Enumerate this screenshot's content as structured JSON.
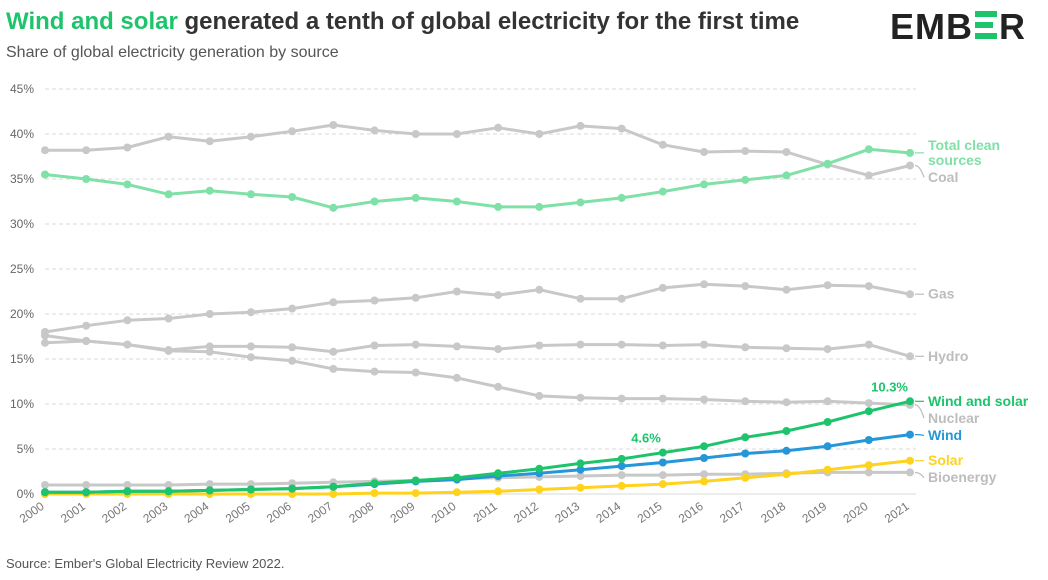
{
  "header": {
    "title_highlight": "Wind and solar",
    "title_rest": " generated a tenth of global electricity for the first time",
    "subtitle": "Share of global electricity generation by source",
    "logo_pre": "EMB",
    "logo_post": "R"
  },
  "footer": {
    "source": "Source: Ember's Global Electricity Review 2022."
  },
  "chart_data": {
    "type": "line",
    "title": "Wind and solar generated a tenth of global electricity for the first time",
    "subtitle": "Share of global electricity generation by source",
    "xlabel": "",
    "ylabel": "",
    "ylim": [
      0,
      45
    ],
    "yticks": [
      0,
      5,
      10,
      15,
      20,
      25,
      30,
      35,
      40,
      45
    ],
    "ytick_labels": [
      "0%",
      "5%",
      "10%",
      "15%",
      "20%",
      "25%",
      "30%",
      "35%",
      "40%",
      "45%"
    ],
    "grid": true,
    "categories": [
      "2000",
      "2001",
      "2002",
      "2003",
      "2004",
      "2005",
      "2006",
      "2007",
      "2008",
      "2009",
      "2010",
      "2011",
      "2012",
      "2013",
      "2014",
      "2015",
      "2016",
      "2017",
      "2018",
      "2019",
      "2020",
      "2021"
    ],
    "series": [
      {
        "name": "Coal",
        "color": "#c8c8c8",
        "labels": [
          "Coal"
        ],
        "values": [
          38.2,
          38.2,
          38.5,
          39.7,
          39.2,
          39.7,
          40.3,
          41.0,
          40.4,
          40.0,
          40.0,
          40.7,
          40.0,
          40.9,
          40.6,
          38.8,
          38.0,
          38.1,
          38.0,
          36.6,
          35.4,
          36.5
        ]
      },
      {
        "name": "Gas",
        "color": "#c8c8c8",
        "labels": [
          "Gas"
        ],
        "values": [
          18.0,
          18.7,
          19.3,
          19.5,
          20.0,
          20.2,
          20.6,
          21.3,
          21.5,
          21.8,
          22.5,
          22.1,
          22.7,
          21.7,
          21.7,
          22.9,
          23.3,
          23.1,
          22.7,
          23.2,
          23.1,
          22.2
        ]
      },
      {
        "name": "Hydro",
        "color": "#c8c8c8",
        "labels": [
          "Hydro"
        ],
        "values": [
          16.8,
          17.0,
          16.6,
          16.0,
          16.4,
          16.4,
          16.3,
          15.8,
          16.5,
          16.6,
          16.4,
          16.1,
          16.5,
          16.6,
          16.6,
          16.5,
          16.6,
          16.3,
          16.2,
          16.1,
          16.6,
          15.3
        ]
      },
      {
        "name": "Nuclear",
        "color": "#c8c8c8",
        "labels": [
          "Nuclear"
        ],
        "values": [
          17.6,
          17.0,
          16.6,
          15.9,
          15.8,
          15.2,
          14.8,
          13.9,
          13.6,
          13.5,
          12.9,
          11.9,
          10.9,
          10.7,
          10.6,
          10.6,
          10.5,
          10.3,
          10.2,
          10.3,
          10.1,
          9.9
        ]
      },
      {
        "name": "Bioenergy",
        "color": "#c8c8c8",
        "labels": [
          "Bioenergy"
        ],
        "values": [
          1.0,
          1.0,
          1.0,
          1.0,
          1.1,
          1.1,
          1.2,
          1.3,
          1.4,
          1.5,
          1.7,
          1.8,
          1.9,
          2.0,
          2.1,
          2.1,
          2.2,
          2.2,
          2.3,
          2.4,
          2.4,
          2.4
        ]
      },
      {
        "name": "Solar",
        "color": "#ffd21c",
        "labels": [
          "Solar"
        ],
        "values": [
          0.0,
          0.0,
          0.0,
          0.0,
          0.0,
          0.0,
          0.0,
          0.0,
          0.1,
          0.1,
          0.2,
          0.3,
          0.5,
          0.7,
          0.9,
          1.1,
          1.4,
          1.8,
          2.2,
          2.7,
          3.2,
          3.7
        ]
      },
      {
        "name": "Wind",
        "color": "#2596d8",
        "labels": [
          "Wind"
        ],
        "values": [
          0.2,
          0.2,
          0.3,
          0.3,
          0.4,
          0.5,
          0.6,
          0.8,
          1.1,
          1.4,
          1.6,
          2.0,
          2.3,
          2.7,
          3.1,
          3.5,
          4.0,
          4.5,
          4.8,
          5.3,
          6.0,
          6.6
        ]
      },
      {
        "name": "Wind and solar",
        "color": "#1ec46b",
        "labels": [
          "Wind and solar"
        ],
        "values": [
          0.2,
          0.2,
          0.3,
          0.3,
          0.4,
          0.5,
          0.6,
          0.8,
          1.2,
          1.5,
          1.8,
          2.3,
          2.8,
          3.4,
          3.9,
          4.6,
          5.3,
          6.3,
          7.0,
          8.0,
          9.2,
          10.3
        ]
      },
      {
        "name": "Total clean sources",
        "color": "#7fe0a8",
        "labels": [
          "Total clean",
          "sources"
        ],
        "values": [
          35.5,
          35.0,
          34.4,
          33.3,
          33.7,
          33.3,
          33.0,
          31.8,
          32.5,
          32.9,
          32.5,
          31.9,
          31.9,
          32.4,
          32.9,
          33.6,
          34.4,
          34.9,
          35.4,
          36.7,
          38.3,
          37.9
        ]
      }
    ],
    "annotations": [
      {
        "series": "Wind and solar",
        "year": "2015",
        "text": "4.6%",
        "color": "#1ec46b"
      },
      {
        "series": "Wind and solar",
        "year": "2021",
        "text": "10.3%",
        "color": "#1ec46b"
      }
    ]
  }
}
